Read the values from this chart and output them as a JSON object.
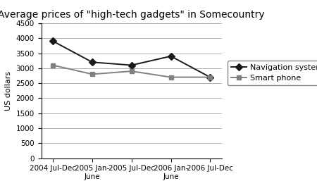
{
  "title": "Average prices of \"high-tech gadgets\" in Somecountry",
  "xlabel": "",
  "ylabel": "US dollars",
  "x_labels": [
    "2004 Jul-Dec",
    "2005 Jan-\nJune",
    "2005 Jul-Dec",
    "2006 Jan-\nJune",
    "2006 Jul-Dec"
  ],
  "navigation_system": [
    3900,
    3200,
    3100,
    3400,
    2700
  ],
  "smart_phone": [
    3100,
    2800,
    2900,
    2700,
    2700
  ],
  "nav_color": "#1a1a1a",
  "smart_color": "#808080",
  "nav_marker": "D",
  "smart_marker": "s",
  "ylim": [
    0,
    4500
  ],
  "yticks": [
    0,
    500,
    1000,
    1500,
    2000,
    2500,
    3000,
    3500,
    4000,
    4500
  ],
  "legend_nav": "Navigation system",
  "legend_smart": "Smart phone",
  "title_fontsize": 10,
  "axis_fontsize": 8,
  "tick_fontsize": 7.5,
  "legend_fontsize": 8,
  "background_color": "#ffffff",
  "grid_color": "#b0b0b0"
}
